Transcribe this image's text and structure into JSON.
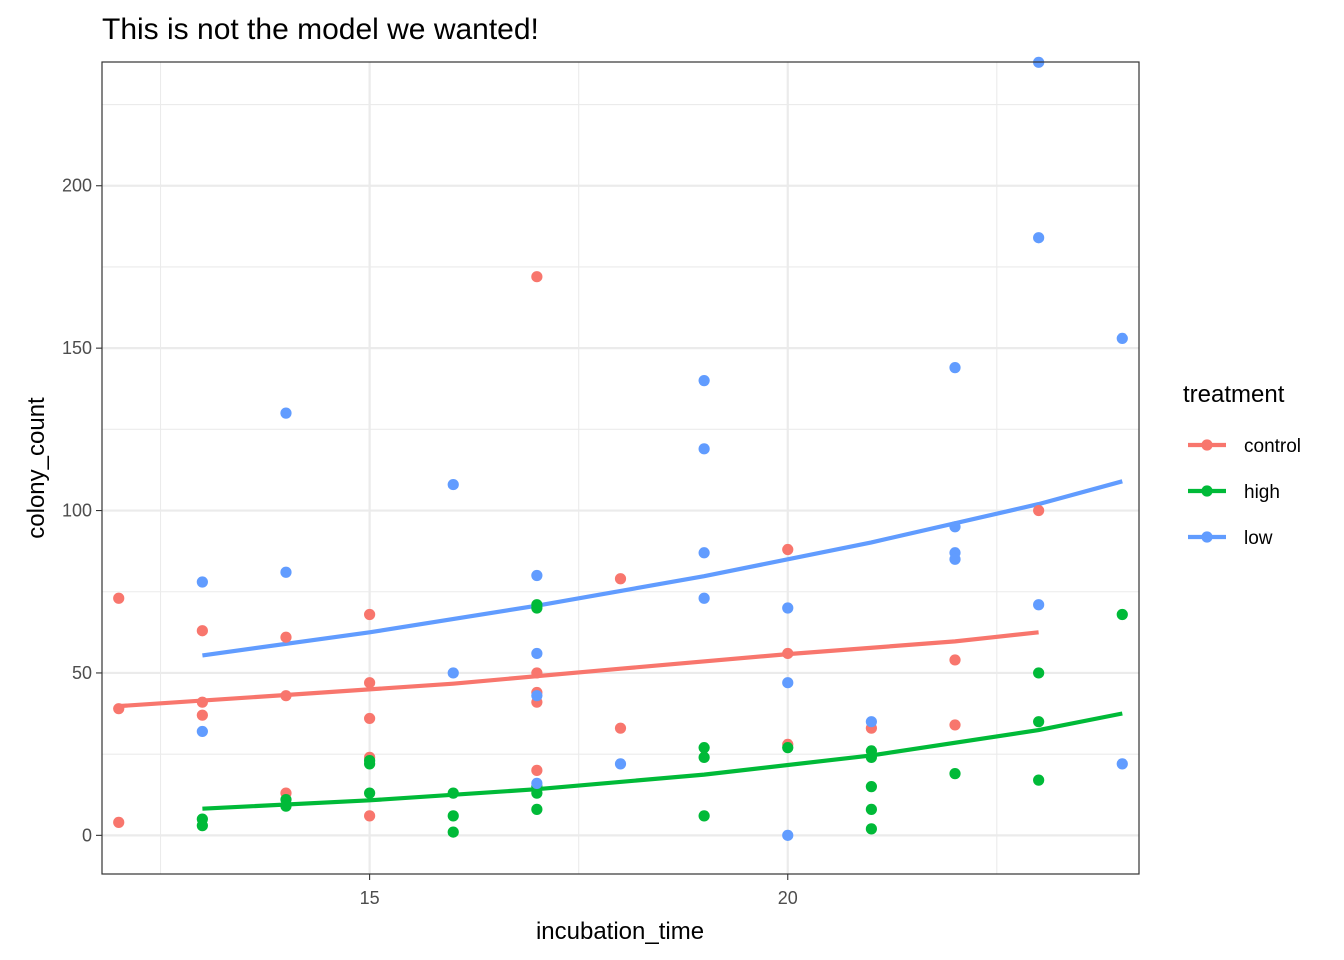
{
  "chart_data": {
    "type": "scatter",
    "title": "This is not the model we wanted!",
    "xlabel": "incubation_time",
    "ylabel": "colony_count",
    "xlim": [
      11.8,
      24.2
    ],
    "ylim": [
      -11.9,
      238.1
    ],
    "x_ticks": [
      15,
      20
    ],
    "x_tick_labels": [
      "15",
      "20"
    ],
    "x_minor_ticks": [
      12.5,
      17.5,
      22.5
    ],
    "y_ticks": [
      0,
      50,
      100,
      150,
      200
    ],
    "y_tick_labels": [
      "0",
      "50",
      "100",
      "150",
      "200"
    ],
    "y_minor_ticks": [
      25,
      75,
      125,
      175,
      225
    ],
    "grid": true,
    "legend": {
      "title": "treatment",
      "position": "right"
    },
    "series": [
      {
        "name": "control",
        "color": "#f8766d",
        "points": [
          [
            12,
            73
          ],
          [
            12,
            39
          ],
          [
            12,
            4
          ],
          [
            13,
            63
          ],
          [
            13,
            41
          ],
          [
            13,
            37
          ],
          [
            14,
            61
          ],
          [
            14,
            43
          ],
          [
            14,
            13
          ],
          [
            15,
            68
          ],
          [
            15,
            47
          ],
          [
            15,
            36
          ],
          [
            15,
            24
          ],
          [
            15,
            6
          ],
          [
            17,
            172
          ],
          [
            17,
            50
          ],
          [
            17,
            44
          ],
          [
            17,
            41
          ],
          [
            17,
            20
          ],
          [
            18,
            79
          ],
          [
            18,
            33
          ],
          [
            20,
            88
          ],
          [
            20,
            56
          ],
          [
            20,
            28
          ],
          [
            21,
            33
          ],
          [
            22,
            54
          ],
          [
            22,
            34
          ],
          [
            23,
            100
          ]
        ],
        "fit": [
          [
            12,
            39.8
          ],
          [
            14,
            43.2
          ],
          [
            16,
            46.7
          ],
          [
            18,
            51.3
          ],
          [
            20,
            55.8
          ],
          [
            22,
            59.7
          ],
          [
            23,
            62.5
          ]
        ]
      },
      {
        "name": "high",
        "color": "#00ba38",
        "points": [
          [
            13,
            5
          ],
          [
            13,
            3
          ],
          [
            14,
            11
          ],
          [
            14,
            9
          ],
          [
            15,
            23
          ],
          [
            15,
            22
          ],
          [
            15,
            13
          ],
          [
            16,
            13
          ],
          [
            16,
            6
          ],
          [
            16,
            1
          ],
          [
            17,
            71
          ],
          [
            17,
            70
          ],
          [
            17,
            15
          ],
          [
            17,
            13
          ],
          [
            17,
            8
          ],
          [
            19,
            27
          ],
          [
            19,
            24
          ],
          [
            19,
            6
          ],
          [
            20,
            27
          ],
          [
            21,
            26
          ],
          [
            21,
            24
          ],
          [
            21,
            15
          ],
          [
            21,
            8
          ],
          [
            21,
            2
          ],
          [
            22,
            19
          ],
          [
            23,
            50
          ],
          [
            23,
            35
          ],
          [
            23,
            17
          ],
          [
            24,
            68
          ]
        ],
        "fit": [
          [
            13,
            8.2
          ],
          [
            15,
            10.8
          ],
          [
            17,
            14.2
          ],
          [
            19,
            18.7
          ],
          [
            21,
            24.6
          ],
          [
            23,
            32.4
          ],
          [
            24,
            37.5
          ]
        ]
      },
      {
        "name": "low",
        "color": "#619cff",
        "points": [
          [
            13,
            78
          ],
          [
            13,
            32
          ],
          [
            14,
            130
          ],
          [
            14,
            81
          ],
          [
            16,
            108
          ],
          [
            16,
            50
          ],
          [
            17,
            80
          ],
          [
            17,
            56
          ],
          [
            17,
            43
          ],
          [
            17,
            16
          ],
          [
            18,
            22
          ],
          [
            19,
            140
          ],
          [
            19,
            119
          ],
          [
            19,
            87
          ],
          [
            19,
            73
          ],
          [
            20,
            70
          ],
          [
            20,
            47
          ],
          [
            20,
            0
          ],
          [
            21,
            35
          ],
          [
            22,
            144
          ],
          [
            22,
            95
          ],
          [
            22,
            87
          ],
          [
            22,
            85
          ],
          [
            23,
            238
          ],
          [
            23,
            184
          ],
          [
            23,
            71
          ],
          [
            24,
            153
          ],
          [
            24,
            22
          ]
        ],
        "fit": [
          [
            13,
            55.4
          ],
          [
            15,
            62.5
          ],
          [
            17,
            70.7
          ],
          [
            19,
            79.8
          ],
          [
            21,
            90.2
          ],
          [
            23,
            102
          ],
          [
            24,
            109
          ]
        ]
      }
    ]
  }
}
